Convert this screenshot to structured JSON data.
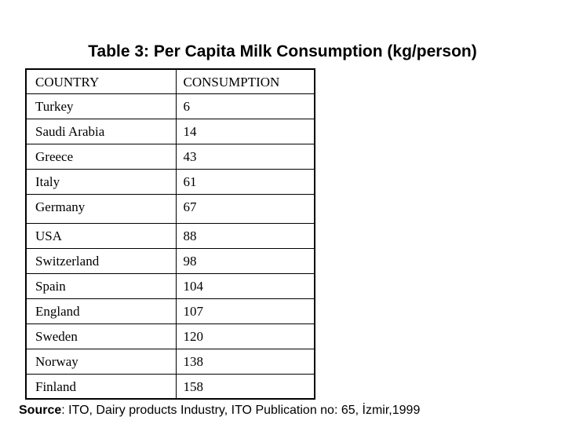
{
  "slide": {
    "title": "Table 3: Per Capita Milk Consumption (kg/person)",
    "source_label": "Source",
    "source_text": ": ITO, Dairy products Industry, ITO Publication no: 65, İzmir,1999"
  },
  "table": {
    "columns": [
      "COUNTRY",
      "CONSUMPTION"
    ],
    "rows": [
      {
        "country": "Turkey",
        "consumption": "6"
      },
      {
        "country": "Saudi Arabia",
        "consumption": "14"
      },
      {
        "country": "Greece",
        "consumption": "43"
      },
      {
        "country": "Italy",
        "consumption": "61"
      },
      {
        "country": "Germany",
        "consumption": "67"
      },
      {
        "country": "USA",
        "consumption": "88"
      },
      {
        "country": "Switzerland",
        "consumption": "98"
      },
      {
        "country": "Spain",
        "consumption": "104"
      },
      {
        "country": "England",
        "consumption": "107"
      },
      {
        "country": "Sweden",
        "consumption": "120"
      },
      {
        "country": "Norway",
        "consumption": "138"
      },
      {
        "country": "Finland",
        "consumption": "158"
      }
    ]
  },
  "chart_data": {
    "type": "table",
    "title": "Table 3: Per Capita Milk Consumption (kg/person)",
    "columns": [
      "COUNTRY",
      "CONSUMPTION"
    ],
    "categories": [
      "Turkey",
      "Saudi Arabia",
      "Greece",
      "Italy",
      "Germany",
      "USA",
      "Switzerland",
      "Spain",
      "England",
      "Sweden",
      "Norway",
      "Finland"
    ],
    "values": [
      6,
      14,
      43,
      61,
      67,
      88,
      98,
      104,
      107,
      120,
      138,
      158
    ],
    "unit": "kg/person",
    "source": "Source: ITO, Dairy products Industry, ITO Publication no: 65, İzmir,1999"
  }
}
